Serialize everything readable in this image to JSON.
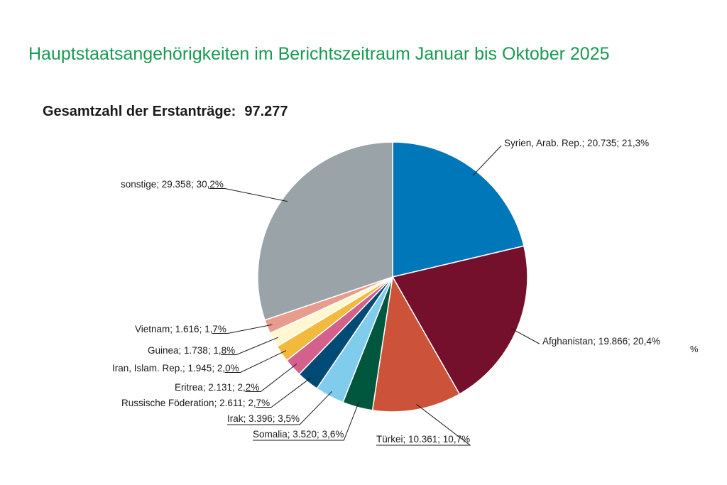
{
  "title": "Hauptstaatsangehörigkeiten im Berichtszeitraum Januar bis Oktober 2025",
  "total_label": "Gesamtzahl der Erstanträge:",
  "total_value": "97.277",
  "stray_fragment": "%",
  "colors": {
    "title": "#1a9a52",
    "slices": [
      "#0077b8",
      "#740f2c",
      "#cc5339",
      "#00573d",
      "#80ccec",
      "#004b75",
      "#d4608c",
      "#f2b93c",
      "#fff7d2",
      "#e89c8e",
      "#9aa3a8"
    ]
  },
  "chart_data": {
    "type": "pie",
    "title": "Gesamtzahl der Erstanträge: 97.277",
    "total": 97277,
    "categories": [
      "Syrien, Arab. Rep.",
      "Afghanistan",
      "Türkei",
      "Somalia",
      "Irak",
      "Russische Föderation",
      "Eritrea",
      "Iran, Islam. Rep.",
      "Guinea",
      "Vietnam",
      "sonstige"
    ],
    "values": [
      20735,
      19866,
      10361,
      3520,
      3396,
      2611,
      2131,
      1945,
      1738,
      1616,
      29358
    ],
    "percents": [
      21.3,
      20.4,
      10.7,
      3.6,
      3.5,
      2.7,
      2.2,
      2.0,
      1.8,
      1.7,
      30.2
    ],
    "labels": [
      "Syrien, Arab. Rep.; 20.735; 21,3%",
      "Afghanistan; 19.866; 20,4%",
      "Türkei; 10.361; 10,7%",
      "Somalia; 3.520; 3,6%",
      "Irak; 3.396; 3,5%",
      "Russische Föderation; 2.611; 2,7%",
      "Eritrea; 2.131; 2,2%",
      "Iran, Islam. Rep.; 1.945; 2,0%",
      "Guinea; 1.738; 1,8%",
      "Vietnam; 1.616; 1,7%",
      "sonstige; 29.358; 30,2%"
    ],
    "start": "12 o'clock",
    "direction": "clockwise",
    "legend": "none (callout labels)"
  }
}
